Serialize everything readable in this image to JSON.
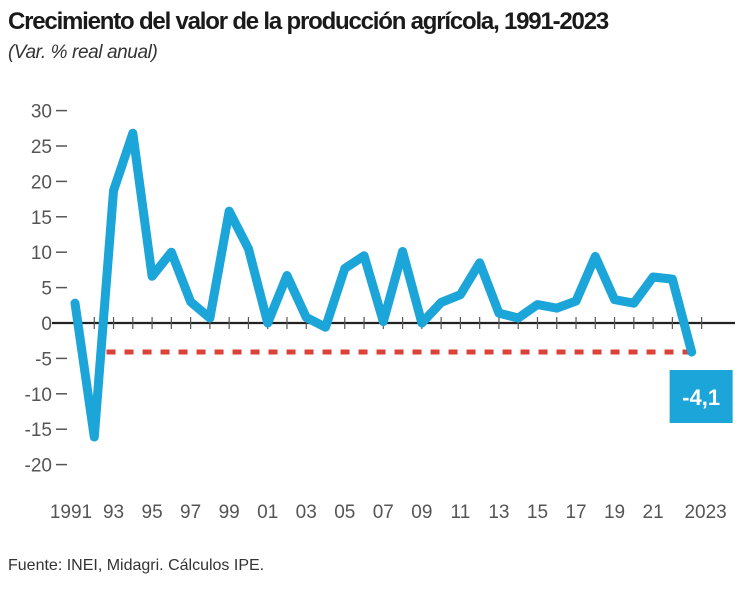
{
  "header": {
    "title": "Crecimiento del valor de la producción agrícola, 1991-2023",
    "subtitle": "(Var. % real anual)"
  },
  "footer": {
    "source": "Fuente: INEI, Midagri. Cálculos IPE."
  },
  "colors": {
    "line": "#1ba5d8",
    "reference_line": "#d9413a",
    "axis": "#222222",
    "label_box": "#1ba5d8"
  },
  "chart_data": {
    "type": "line",
    "title": "Crecimiento del valor de la producción agrícola, 1991-2023",
    "subtitle": "(Var. % real anual)",
    "xlabel": "",
    "ylabel": "",
    "x": [
      1991,
      1992,
      1993,
      1994,
      1995,
      1996,
      1997,
      1998,
      1999,
      2000,
      2001,
      2002,
      2003,
      2004,
      2005,
      2006,
      2007,
      2008,
      2009,
      2010,
      2011,
      2012,
      2013,
      2014,
      2015,
      2016,
      2017,
      2018,
      2019,
      2020,
      2021,
      2022,
      2023
    ],
    "series": [
      {
        "name": "Var. % real anual",
        "values": [
          2.8,
          -16.1,
          18.7,
          26.8,
          6.6,
          10.0,
          3.0,
          0.7,
          15.8,
          10.5,
          0.0,
          6.7,
          0.8,
          -0.6,
          7.7,
          9.5,
          0.2,
          10.1,
          0.0,
          2.9,
          4.0,
          8.5,
          1.4,
          0.7,
          2.6,
          2.1,
          3.1,
          9.4,
          3.3,
          2.8,
          6.5,
          6.2,
          -4.1
        ]
      }
    ],
    "reference_line": {
      "value": -4.1,
      "from_year": 1993,
      "to_year": 2023,
      "style": "dashed"
    },
    "annotation": {
      "year": 2023,
      "text": "-4,1"
    },
    "yticks": [
      30,
      25,
      20,
      15,
      10,
      5,
      0,
      -5,
      -10,
      -15,
      -20
    ],
    "ytick_labels": [
      "30",
      "25",
      "20",
      "15",
      "10",
      "5",
      "0",
      "-5",
      "-10",
      "-15",
      "-20"
    ],
    "xtick_years": [
      1991,
      1993,
      1995,
      1997,
      1999,
      2001,
      2003,
      2005,
      2007,
      2009,
      2011,
      2013,
      2015,
      2017,
      2019,
      2021,
      2023
    ],
    "xtick_labels": [
      "1991",
      "93",
      "95",
      "97",
      "99",
      "01",
      "03",
      "05",
      "07",
      "09",
      "11",
      "13",
      "15",
      "17",
      "19",
      "21",
      "2023"
    ],
    "ylim": [
      -20,
      30
    ],
    "xlim": [
      1991,
      2023
    ],
    "grid": false,
    "legend": "none"
  }
}
